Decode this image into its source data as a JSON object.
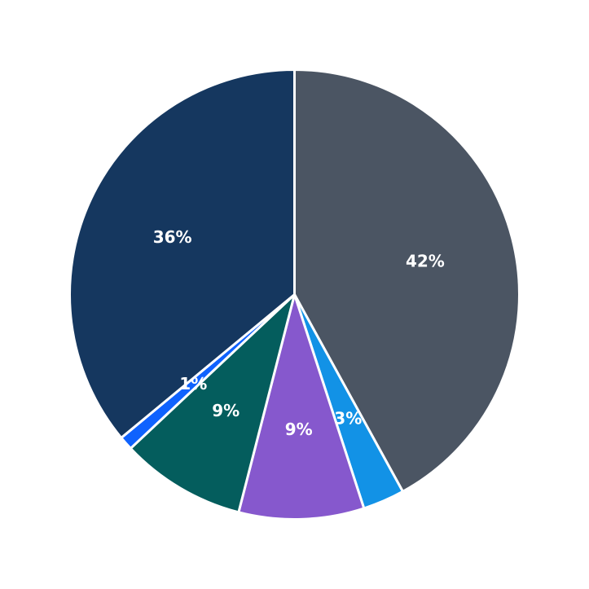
{
  "chart_data": {
    "type": "pie",
    "start_angle_deg": 90,
    "direction": "clockwise",
    "slices": [
      {
        "value": 42,
        "label": "42%",
        "color": "#4b5563"
      },
      {
        "value": 3,
        "label": "3%",
        "color": "#1292e6"
      },
      {
        "value": 9,
        "label": "9%",
        "color": "#8658cd"
      },
      {
        "value": 9,
        "label": "9%",
        "color": "#045d5d"
      },
      {
        "value": 1,
        "label": "1%",
        "color": "#0f62fe"
      },
      {
        "value": 36,
        "label": "36%",
        "color": "#15375f"
      }
    ],
    "slice_border_color": "#ffffff",
    "background": "#ffffff"
  }
}
